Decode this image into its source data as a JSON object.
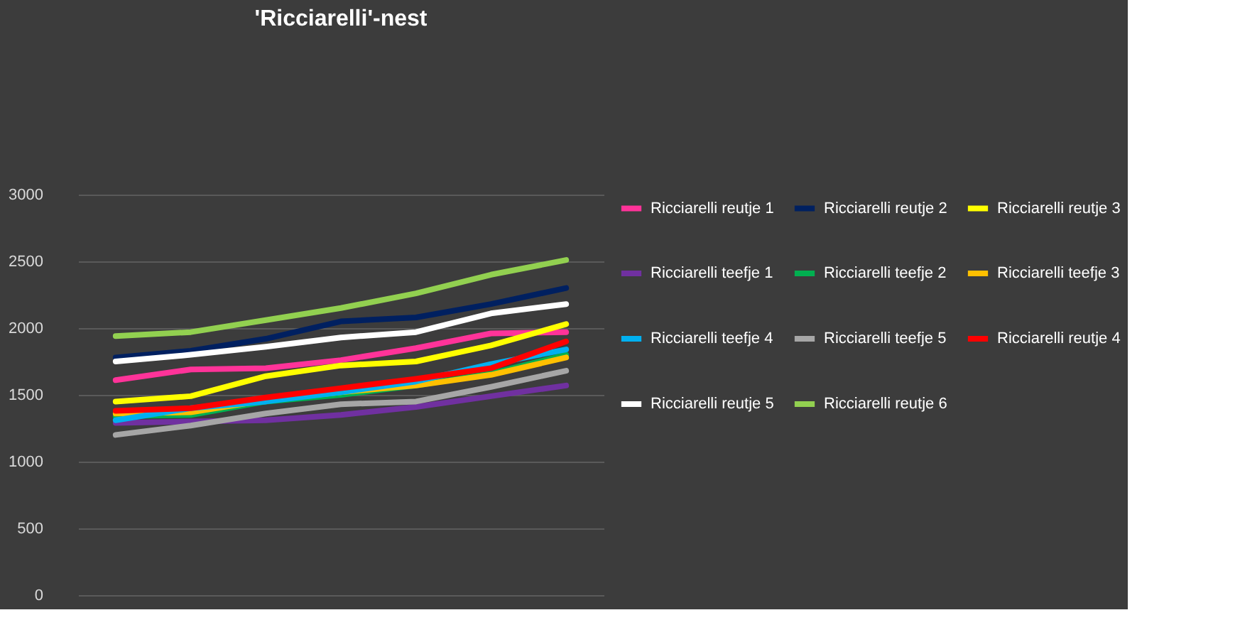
{
  "chart_data": {
    "type": "line",
    "title": "'Ricciarelli'-nest",
    "categories": [
      null,
      null,
      null,
      null,
      null,
      null,
      null
    ],
    "ylim": [
      0,
      3000
    ],
    "yticks": [
      0,
      500,
      1000,
      1500,
      2000,
      2500,
      3000
    ],
    "grid": "y",
    "legend": "right",
    "tick_labels": "y",
    "marker": "none",
    "line_style": "solid",
    "series": [
      {
        "name": "Ricciarelli reutje 1",
        "color": "#ff3399",
        "values": [
          1610,
          1690,
          1700,
          1760,
          1850,
          1960,
          1970
        ]
      },
      {
        "name": "Ricciarelli reutje 2",
        "color": "#002060",
        "values": [
          1780,
          1830,
          1920,
          2050,
          2080,
          2180,
          2300
        ]
      },
      {
        "name": "Ricciarelli reutje 3",
        "color": "#ffff00",
        "values": [
          1450,
          1490,
          1640,
          1720,
          1750,
          1870,
          2030
        ]
      },
      {
        "name": "Ricciarelli teefje 1",
        "color": "#7030a0",
        "values": [
          1290,
          1300,
          1310,
          1350,
          1410,
          1490,
          1570
        ]
      },
      {
        "name": "Ricciarelli teefje 2",
        "color": "#00b050",
        "values": [
          1340,
          1350,
          1450,
          1500,
          1570,
          1660,
          1800
        ]
      },
      {
        "name": "Ricciarelli teefje 3",
        "color": "#ffc000",
        "values": [
          1360,
          1370,
          1460,
          1520,
          1570,
          1650,
          1780
        ]
      },
      {
        "name": "Ricciarelli teefje 4",
        "color": "#00b0f0",
        "values": [
          1310,
          1400,
          1450,
          1520,
          1600,
          1730,
          1840
        ]
      },
      {
        "name": "Ricciarelli teefje 5",
        "color": "#a6a6a6",
        "values": [
          1200,
          1270,
          1360,
          1430,
          1450,
          1560,
          1680
        ]
      },
      {
        "name": "Ricciarelli reutje 4",
        "color": "#ff0000",
        "values": [
          1380,
          1400,
          1480,
          1550,
          1620,
          1700,
          1900
        ]
      },
      {
        "name": "Ricciarelli reutje 5",
        "color": "#ffffff",
        "values": [
          1750,
          1800,
          1860,
          1930,
          1970,
          2110,
          2180
        ]
      },
      {
        "name": "Ricciarelli reutje 6",
        "color": "#92d050",
        "values": [
          1940,
          1970,
          2060,
          2150,
          2260,
          2400,
          2510
        ]
      }
    ]
  }
}
